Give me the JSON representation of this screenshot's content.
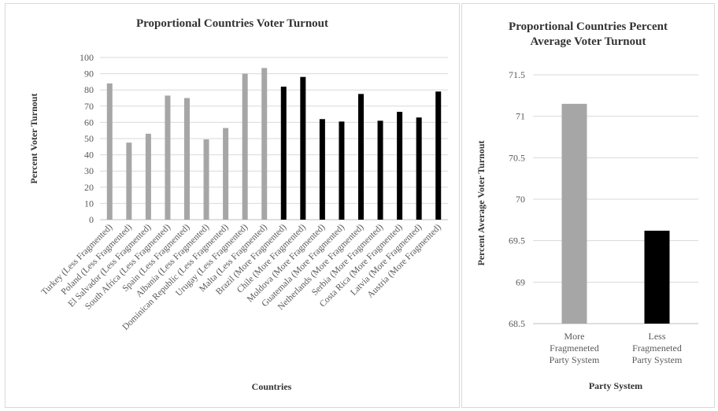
{
  "chart_data": [
    {
      "type": "bar",
      "title": "Proportional Countries Voter Turnout",
      "xlabel": "Countries",
      "ylabel": "Percent Voter Turnout",
      "ylim": [
        0,
        100
      ],
      "yticks": [
        0,
        10,
        20,
        30,
        40,
        50,
        60,
        70,
        80,
        90,
        100
      ],
      "grid": true,
      "legend": "none",
      "colors": {
        "less_fragmented": "#a6a6a6",
        "more_fragmented": "#000000"
      },
      "categories": [
        "Turkey (Less Fragmented)",
        "Poland (Less Fragmented)",
        "El Salvador (Less Fragmented)",
        "South Africa (Less Fragmented)",
        "Spain (Less Fragmented)",
        "Albania (Less Fragmented)",
        "Dominican Republic (Less Fragmented)",
        "Urugay (Less Fragmented)",
        "Malta (Less Fragmented)",
        "Brazil (More Fragmented)",
        "Chile (More Fragmented)",
        "Moldova (More Fragmented)",
        "Guatemala (More Fragmented)",
        "Netherlands (More Fragmented)",
        "Serbia (More Fragmented)",
        "Costa Rica (More Fragmented)",
        "Latvia (More Fragmented)",
        "Austria (More Fragmented)"
      ],
      "values": [
        84,
        47.5,
        53,
        76.5,
        75,
        49.5,
        56.5,
        90,
        93.5,
        82,
        88,
        62,
        60.5,
        77.5,
        61,
        66.5,
        63,
        79
      ],
      "groups": [
        "less",
        "less",
        "less",
        "less",
        "less",
        "less",
        "less",
        "less",
        "less",
        "more",
        "more",
        "more",
        "more",
        "more",
        "more",
        "more",
        "more",
        "more"
      ]
    },
    {
      "type": "bar",
      "title": "Proportional Countries Percent Average Voter Turnout",
      "title_lines": [
        "Proportional Countries Percent",
        "Average Voter Turnout"
      ],
      "xlabel": "Party System",
      "ylabel": "Percent Average Voter Turnout",
      "ylim": [
        68.5,
        71.5
      ],
      "yticks": [
        "68.5",
        "69",
        "69.5",
        "70",
        "70.5",
        "71",
        "71.5"
      ],
      "grid": true,
      "legend": "none",
      "categories": [
        "More Fragmeneted Party System",
        "Less Fragmeneted Party System"
      ],
      "category_lines": [
        [
          "More",
          "Fragmeneted",
          "Party System"
        ],
        [
          "Less",
          "Fragmeneted",
          "Party System"
        ]
      ],
      "values": [
        71.15,
        69.62
      ],
      "colors": [
        "#a6a6a6",
        "#000000"
      ]
    }
  ]
}
